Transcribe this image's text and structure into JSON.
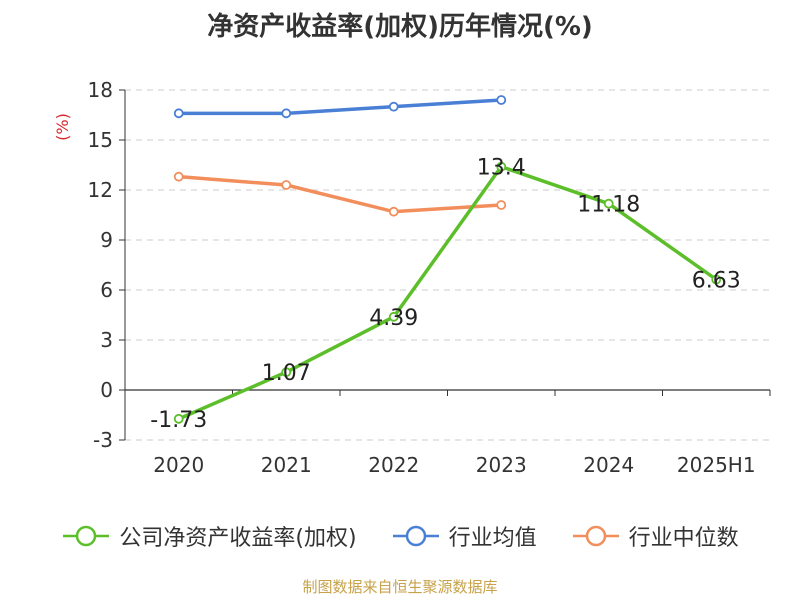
{
  "title": "净资产收益率(加权)历年情况(%)",
  "source": "制图数据来自恒生聚源数据库",
  "chart_data": {
    "type": "line",
    "title": "净资产收益率(加权)历年情况(%)",
    "ylabel": "(%)",
    "xlabel": "",
    "categories": [
      "2020",
      "2021",
      "2022",
      "2023",
      "2024",
      "2025H1"
    ],
    "ylim": [
      -3,
      18
    ],
    "yticks": [
      -3,
      0,
      3,
      6,
      9,
      12,
      15,
      18
    ],
    "grid": true,
    "legend_position": "bottom",
    "series": [
      {
        "name": "公司净资产收益率(加权)",
        "color": "#5cbf2a",
        "values": [
          -1.73,
          1.07,
          4.39,
          13.4,
          11.18,
          6.63
        ],
        "labels": [
          "-1.73",
          "1.07",
          "4.39",
          "13.4",
          "11.18",
          "6.63"
        ]
      },
      {
        "name": "行业均值",
        "color": "#4a7fd6",
        "values": [
          16.6,
          16.6,
          17.0,
          17.4,
          null,
          null
        ]
      },
      {
        "name": "行业中位数",
        "color": "#f28e5b",
        "values": [
          12.8,
          12.3,
          10.7,
          11.1,
          null,
          null
        ]
      }
    ]
  }
}
